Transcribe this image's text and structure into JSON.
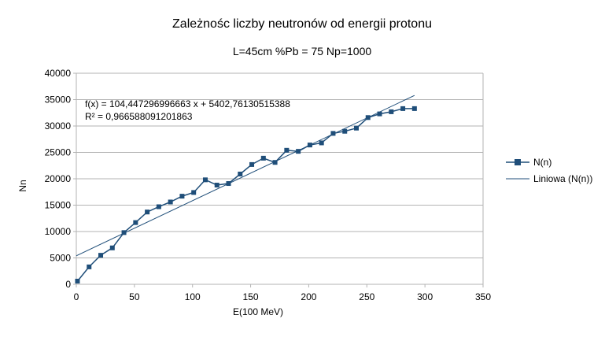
{
  "chart_data": {
    "type": "scatter",
    "title": "Zależnośc liczby neutronów od energii protonu",
    "subtitle": "L=45cm %Pb = 75 Np=1000",
    "xlabel": "E(100 MeV)",
    "ylabel": "Nn",
    "xlim": [
      0,
      350
    ],
    "ylim": [
      0,
      40000
    ],
    "xticks": [
      "0",
      "50",
      "100",
      "150",
      "200",
      "250",
      "300",
      "350"
    ],
    "yticks": [
      "0",
      "5000",
      "10000",
      "15000",
      "20000",
      "25000",
      "30000",
      "35000",
      "40000"
    ],
    "grid": "horizontal",
    "legend_position": "right",
    "series": [
      {
        "name": "N(n)",
        "color": "#1f4e79",
        "marker": "square",
        "x": [
          1,
          11,
          21,
          31,
          41,
          51,
          61,
          71,
          81,
          91,
          101,
          111,
          121,
          131,
          141,
          151,
          161,
          171,
          181,
          191,
          201,
          211,
          221,
          231,
          241,
          251,
          261,
          271,
          281,
          291
        ],
        "y": [
          600,
          3300,
          5500,
          6900,
          9800,
          11700,
          13700,
          14700,
          15600,
          16700,
          17400,
          19800,
          18800,
          19100,
          20900,
          22700,
          23900,
          23100,
          25400,
          25200,
          26400,
          26800,
          28600,
          29000,
          29600,
          31600,
          32300,
          32700,
          33300,
          33300
        ]
      }
    ],
    "trendline": {
      "name": "Liniowa (N(n))",
      "color": "#1f4e79",
      "slope": 104.447296996663,
      "intercept": 5402.76130515388,
      "x_range": [
        0,
        291
      ],
      "equation_text": "f(x) = 104,447296996663 x + 5402,76130515388",
      "r2_text": "R² = 0,966588091201863"
    }
  }
}
